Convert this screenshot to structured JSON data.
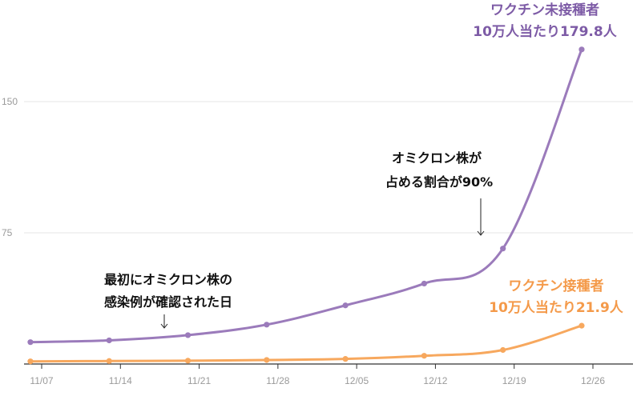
{
  "chart_data": {
    "type": "line",
    "title": "",
    "xlabel": "",
    "ylabel": "",
    "x_tick_labels": [
      "11/07",
      "11/14",
      "11/21",
      "11/28",
      "12/05",
      "12/12",
      "12/19",
      "12/26"
    ],
    "y_ticks": [
      75,
      150
    ],
    "ylim": [
      0,
      190
    ],
    "grid": "horizontal",
    "legend": "none",
    "x": [
      "11/06",
      "11/13",
      "11/20",
      "11/27",
      "12/04",
      "12/11",
      "12/18",
      "12/25"
    ],
    "series": [
      {
        "color": "#9b7bbb",
        "values": [
          12.5,
          13.5,
          16.5,
          22.5,
          33.5,
          46.0,
          66.0,
          179.8
        ]
      },
      {
        "color": "#f7a85e",
        "values": [
          1.5,
          1.7,
          1.9,
          2.3,
          2.9,
          4.7,
          8.0,
          21.9
        ]
      }
    ],
    "annotations": {
      "unvaccinated": {
        "line1": "ワクチン未接種者",
        "line2": "10万人当たり179.8人",
        "color": "#7d5ba6"
      },
      "vaccinated": {
        "line1": "ワクチン接種者",
        "line2": "10万人当たり21.9人",
        "color": "#f49a4a"
      },
      "first_case": {
        "line1": "最初にオミクロン株の",
        "line2": "感染例が確認された日"
      },
      "omicron_90": {
        "line1": "オミクロン株が",
        "line2": "占める割合が90%"
      }
    }
  }
}
